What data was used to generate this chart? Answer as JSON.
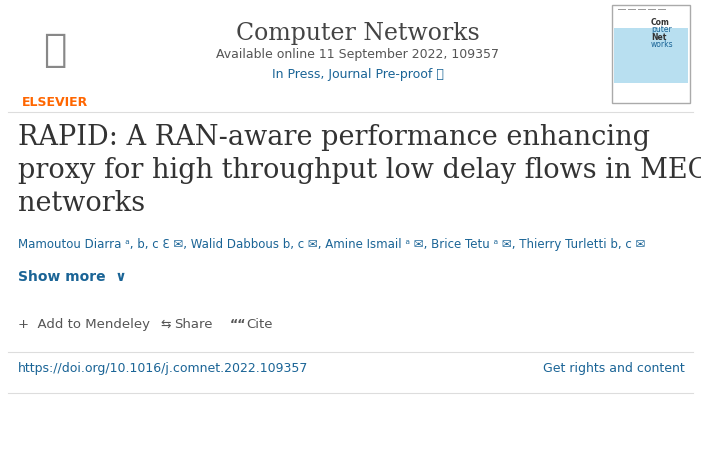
{
  "bg_color": "#ffffff",
  "header_journal": "Computer Networks",
  "header_available": "Available online 11 September 2022, 109357",
  "header_inpress": "In Press, Journal Pre-proof ⓘ",
  "title_line1": "RAPID: A RAN-aware performance enhancing",
  "title_line2": "proxy for high throughput low delay flows in MEC",
  "title_line3": "networks",
  "authors": "Mamoutou Diarra ᵃ, b, c ℇ ✉, Walid Dabbous b, c ✉, Amine Ismail ᵃ ✉, Brice Tetu ᵃ ✉, Thierry Turletti b, c ✉",
  "show_more": "Show more  ∨",
  "add_mendeley": "+  Add to Mendeley",
  "share_icon": "⫸",
  "share": "Share",
  "cite_icon": "❝",
  "cite": "Cite",
  "doi": "https://doi.org/10.1016/j.comnet.2022.109357",
  "rights": "Get rights and content",
  "elsevier_color": "#FF6600",
  "link_color": "#1a6496",
  "title_color": "#333333",
  "author_color": "#1a6496",
  "body_color": "#555555",
  "separator_color": "#dddddd",
  "header_title_color": "#555555",
  "journal_title_color": "#444444"
}
